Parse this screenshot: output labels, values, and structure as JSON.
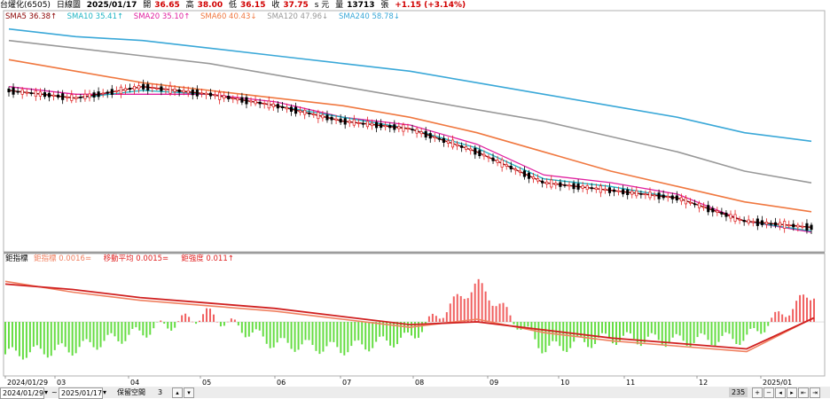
{
  "header": {
    "symbol": "台燿化(6505)",
    "period": "日線圖",
    "date": "2025/01/17",
    "open_label": "開",
    "open": "36.65",
    "high_label": "高",
    "high": "38.00",
    "low_label": "低",
    "low": "36.15",
    "close_label": "收",
    "close": "37.75",
    "close_suffix": "s 元",
    "volume_label": "量",
    "volume": "13713",
    "volume_unit": "張",
    "change": "+1.15 (+3.14%)"
  },
  "ma_legend": [
    {
      "label": "SMA5",
      "value": "36.38",
      "arrow": "↑",
      "color": "#8b0000"
    },
    {
      "label": "SMA10",
      "value": "35.41",
      "arrow": "↑",
      "color": "#1fb5c4"
    },
    {
      "label": "SMA20",
      "value": "35.10",
      "arrow": "↑",
      "color": "#e020a0"
    },
    {
      "label": "SMA60",
      "value": "40.43",
      "arrow": "↓",
      "color": "#f07840"
    },
    {
      "label": "SMA120",
      "value": "47.96",
      "arrow": "↓",
      "color": "#999999"
    },
    {
      "label": "SMA240",
      "value": "58.78",
      "arrow": "↓",
      "color": "#3aa8d8"
    }
  ],
  "osc_legend": {
    "title": "鉅指標",
    "items": [
      {
        "label": "鉅指標",
        "value": "0.0016",
        "arrow": "=",
        "color": "#f08060"
      },
      {
        "label": "移動平均",
        "value": "0.0015",
        "arrow": "=",
        "color": "#e02020"
      },
      {
        "label": "鉅強度",
        "value": "0.011",
        "arrow": "↑",
        "color": "#e02020"
      }
    ]
  },
  "x_axis": {
    "labels": [
      "2024/01/29",
      "03",
      "04",
      "05",
      "06",
      "07",
      "08",
      "09",
      "10",
      "11",
      "12",
      "2025/01"
    ]
  },
  "bottom_bar": {
    "start_date": "2024/01/29",
    "end_date": "2025/01/17",
    "mid_label": "保留空間",
    "mid_value": "3",
    "count": "235"
  },
  "colors": {
    "up": "#e02020",
    "down": "#000000",
    "osc_pos": "#f06060",
    "osc_neg": "#66dd44",
    "sma5": "#8b0000",
    "sma10": "#1fb5c4",
    "sma20": "#e020a0",
    "sma60": "#f07840",
    "sma120": "#999999",
    "sma240": "#3aa8d8",
    "osc_line": "#f08060",
    "osc_ma": "#d02020"
  },
  "chart_data": {
    "type": "line",
    "title": "",
    "xlabel": "",
    "ylabel": "",
    "x": [
      "2024/01/29",
      "2024/02/29",
      "2024/03/31",
      "2024/04/30",
      "2024/05/31",
      "2024/06/30",
      "2024/07/31",
      "2024/08/31",
      "2024/09/30",
      "2024/10/31",
      "2024/11/30",
      "2024/12/31",
      "2025/01/17"
    ],
    "series": [
      {
        "name": "SMA5",
        "values": [
          72,
          70,
          73,
          71,
          68,
          64,
          62,
          56,
          48,
          46,
          44,
          38,
          36.38
        ]
      },
      {
        "name": "SMA10",
        "values": [
          72,
          70,
          72,
          71,
          68,
          65,
          62,
          57,
          49,
          47,
          44,
          38,
          35.41
        ]
      },
      {
        "name": "SMA20",
        "values": [
          73,
          71,
          71,
          71,
          69,
          65,
          63,
          58,
          50,
          48,
          45,
          38,
          35.1
        ]
      },
      {
        "name": "SMA60",
        "values": [
          80,
          77,
          74,
          72,
          70,
          68,
          65,
          61,
          56,
          51,
          47,
          43,
          40.43
        ]
      },
      {
        "name": "SMA120",
        "values": [
          85,
          83,
          81,
          79,
          76,
          73,
          70,
          67,
          64,
          60,
          56,
          51,
          47.96
        ]
      },
      {
        "name": "SMA240",
        "values": [
          88,
          86,
          85,
          83,
          81,
          79,
          77,
          74,
          71,
          68,
          65,
          61,
          58.78
        ]
      }
    ],
    "oscillator": {
      "categories": [
        "2024/01",
        "2024/02",
        "2024/03",
        "2024/04",
        "2024/05",
        "2024/06",
        "2024/07",
        "2024/08",
        "2024/09",
        "2024/10",
        "2024/11",
        "2024/12",
        "2025/01"
      ],
      "bars": [
        -0.012,
        -0.01,
        -0.004,
        0.003,
        -0.008,
        -0.01,
        -0.006,
        0.014,
        -0.01,
        -0.006,
        -0.007,
        -0.006,
        0.011
      ],
      "index": [
        0.015,
        0.011,
        0.008,
        0.006,
        0.004,
        0.001,
        -0.002,
        0.001,
        -0.004,
        -0.007,
        -0.009,
        -0.011,
        0.0016
      ],
      "moving_avg": [
        0.014,
        0.012,
        0.009,
        0.007,
        0.005,
        0.002,
        -0.001,
        0.0,
        -0.003,
        -0.006,
        -0.008,
        -0.01,
        0.0015
      ]
    }
  }
}
